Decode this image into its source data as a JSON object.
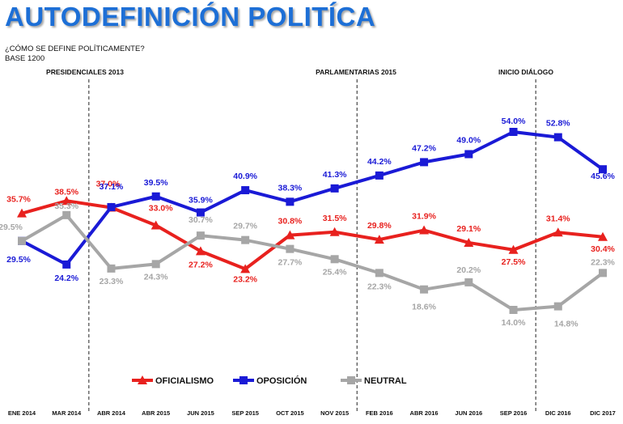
{
  "title": "AUTODEFINICIÓN POLITÍCA",
  "subtitle": "¿CÓMO SE DEFINE POLÍTICAMENTE?",
  "base": "BASE 1200",
  "events": [
    {
      "label": "PRESIDENCIALES 2013",
      "between": [
        1,
        2
      ]
    },
    {
      "label": "PARLAMENTARIAS 2015",
      "between": [
        7,
        8
      ]
    },
    {
      "label": "INICIO DIÁLOGO",
      "between": [
        11,
        12
      ]
    }
  ],
  "chart_data": {
    "type": "line",
    "categories": [
      "ENE 2014",
      "MAR 2014",
      "ABR 2014",
      "ABR 2015",
      "JUN 2015",
      "SEP 2015",
      "OCT 2015",
      "NOV 2015",
      "FEB 2016",
      "ABR 2016",
      "JUN 2016",
      "SEP 2016",
      "DIC 2016",
      "DIC 2017"
    ],
    "ylim": [
      10,
      58
    ],
    "grid": false,
    "legend_position": "bottom",
    "series": [
      {
        "name": "OFICIALISMO",
        "color": "#e8211e",
        "marker": "triangle",
        "values": [
          35.7,
          38.5,
          37.0,
          33.0,
          27.2,
          23.2,
          30.8,
          31.5,
          29.8,
          31.9,
          29.1,
          27.5,
          31.4,
          30.4
        ],
        "labels": [
          "35.7%",
          "38.5%",
          "37.0%",
          "33.0%",
          "27.2%",
          "23.2%",
          "30.8%",
          "31.5%",
          "29.8%",
          "31.9%",
          "29.1%",
          "27.5%",
          "31.4%",
          "30.4%"
        ]
      },
      {
        "name": "OPOSICIÓN",
        "color": "#1a1ad6",
        "marker": "square",
        "values": [
          29.5,
          24.2,
          37.1,
          39.5,
          35.9,
          40.9,
          38.3,
          41.3,
          44.2,
          47.2,
          49.0,
          54.0,
          52.8,
          45.6
        ],
        "labels": [
          "29.5%",
          "24.2%",
          "37.1%",
          "39.5%",
          "35.9%",
          "40.9%",
          "38.3%",
          "41.3%",
          "44.2%",
          "47.2%",
          "49.0%",
          "54.0%",
          "52.8%",
          "45.6%"
        ]
      },
      {
        "name": "NEUTRAL",
        "color": "#a6a6a6",
        "marker": "square",
        "values": [
          29.5,
          35.3,
          23.3,
          24.3,
          30.7,
          29.7,
          27.7,
          25.4,
          22.3,
          18.6,
          20.2,
          14.0,
          14.8,
          22.3
        ],
        "labels": [
          "29.5%",
          "35.3%",
          "23.3%",
          "24.3%",
          "30.7%",
          "29.7%",
          "27.7%",
          "25.4%",
          "22.3%",
          "18.6%",
          "20.2%",
          "14.0%",
          "14.8%",
          "22.3%"
        ]
      }
    ]
  }
}
